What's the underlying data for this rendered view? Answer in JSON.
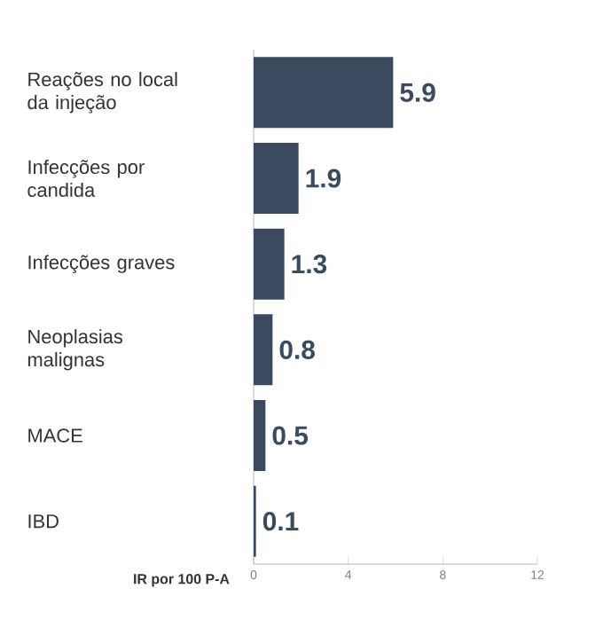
{
  "chart_data": {
    "type": "bar",
    "orientation": "horizontal",
    "categories": [
      "Reações no local da injeção",
      "Infecções por candida",
      "Infecções graves",
      "Neoplasias malignas",
      "MACE",
      "IBD"
    ],
    "values": [
      5.9,
      1.9,
      1.3,
      0.8,
      0.5,
      0.1
    ],
    "color": "#3b4a5f",
    "data_labels": true,
    "xlabel": "IR por 100 P-A",
    "xlim": [
      0,
      12
    ],
    "xticks": [
      0,
      4,
      8,
      12
    ]
  }
}
